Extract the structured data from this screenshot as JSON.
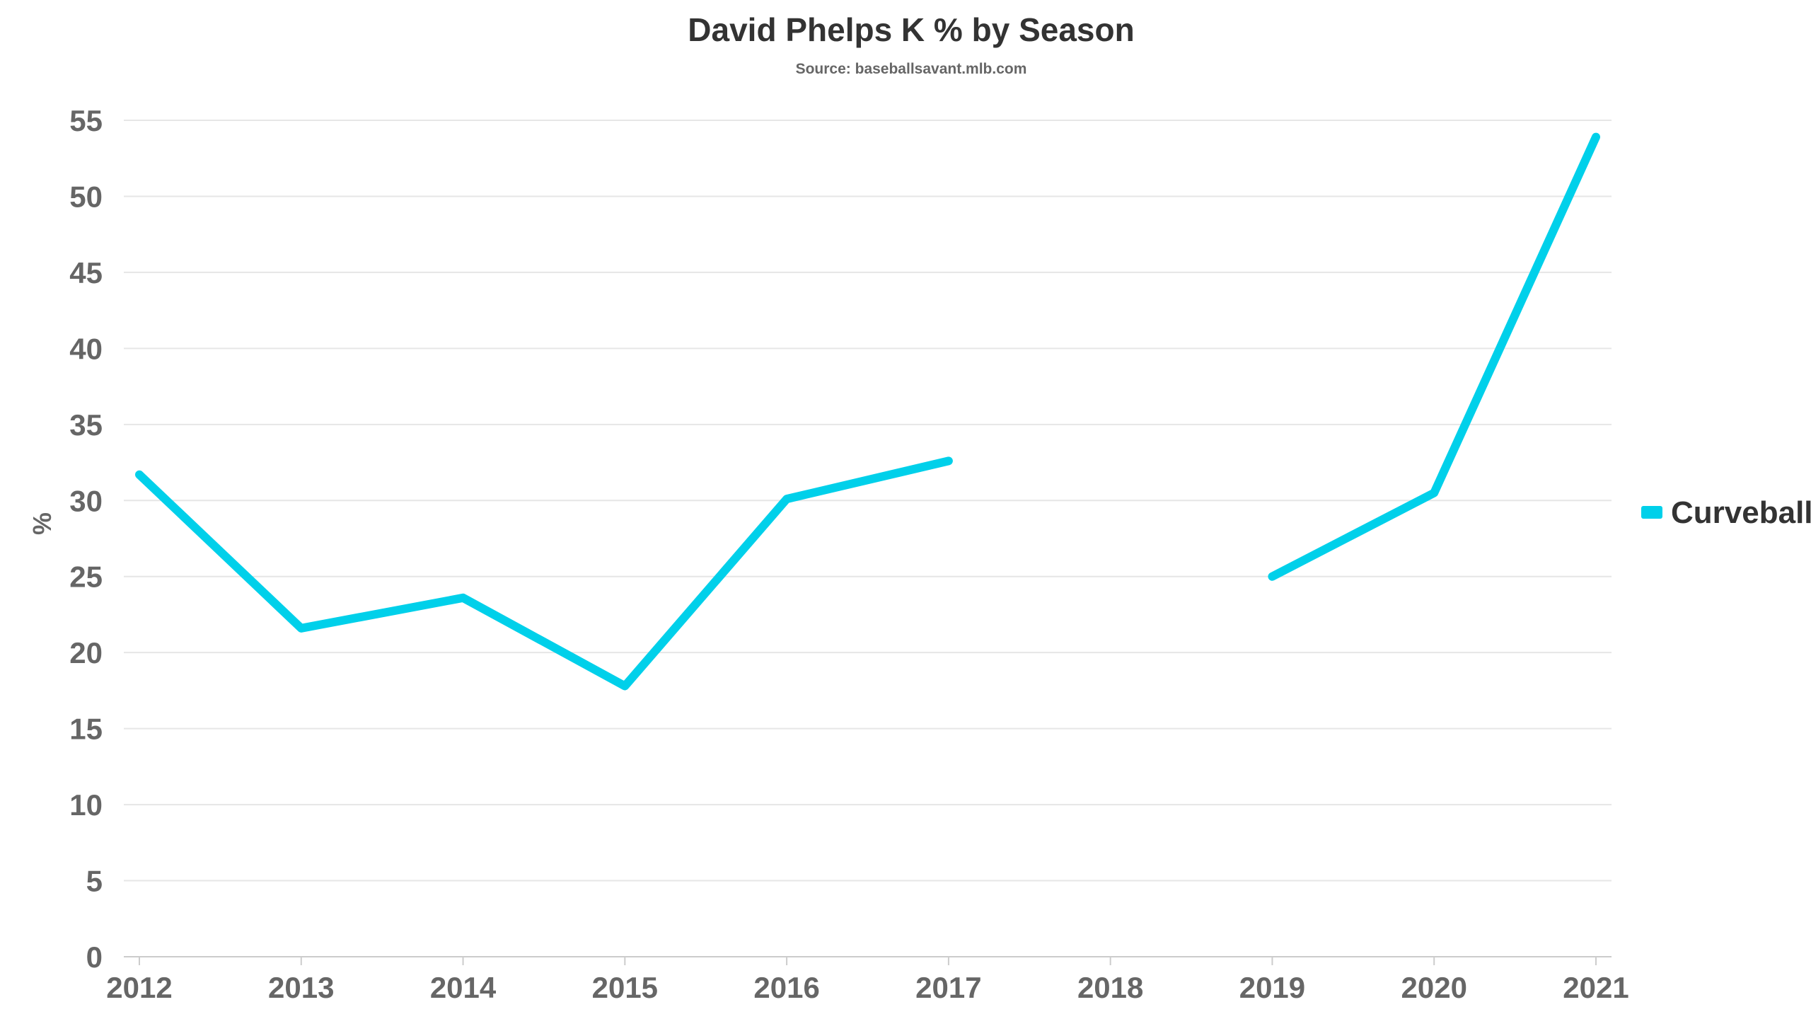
{
  "chart_data": {
    "type": "line",
    "title": "David Phelps K % by Season",
    "subtitle": "Source: baseballsavant.mlb.com",
    "xlabel": "",
    "ylabel": "%",
    "categories": [
      "2012",
      "2013",
      "2014",
      "2015",
      "2016",
      "2017",
      "2018",
      "2019",
      "2020",
      "2021"
    ],
    "yticks": [
      0,
      5,
      10,
      15,
      20,
      25,
      30,
      35,
      40,
      45,
      50,
      55
    ],
    "ylim": [
      0,
      55
    ],
    "grid": true,
    "legend_position": "right",
    "series": [
      {
        "name": "Curveball",
        "color": "#00d0ea",
        "values": [
          31.7,
          21.6,
          23.6,
          17.8,
          30.1,
          32.6,
          null,
          25.0,
          30.5,
          53.9
        ]
      }
    ]
  }
}
